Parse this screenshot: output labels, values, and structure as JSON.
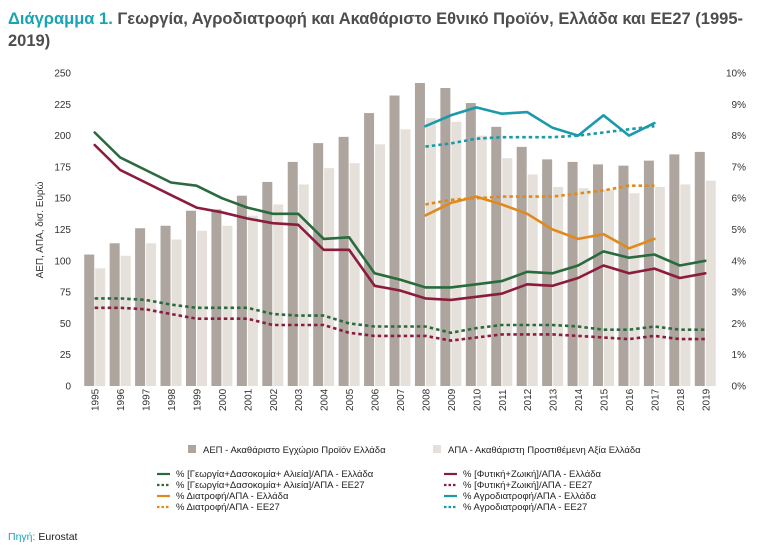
{
  "title": {
    "prefix": "Διάγραμμα 1.",
    "text": "Γεωργία, Αγροδιατροφή και Ακαθάριστο Εθνικό Προϊόν, Ελλάδα και ΕΕ27 (1995-2019)"
  },
  "source": {
    "label": "Πηγή:",
    "value": "Eurostat"
  },
  "colors": {
    "gdp_bar": "#ada59e",
    "gva_bar": "#e5e0da",
    "agri": "#2a6b3e",
    "plant": "#8c1c3b",
    "food": "#e08a1e",
    "agrifood": "#1a9aaa"
  },
  "chart_data": {
    "type": "bar+line",
    "categories": [
      "1995",
      "1996",
      "1997",
      "1998",
      "1999",
      "2000",
      "2001",
      "2002",
      "2003",
      "2004",
      "2005",
      "2006",
      "2007",
      "2008",
      "2009",
      "2010",
      "2011",
      "2012",
      "2013",
      "2014",
      "2015",
      "2016",
      "2017",
      "2018",
      "2019"
    ],
    "ylabel": "ΑΕΠ, ΑΠΑ, δισ. Ευρώ",
    "ylim": [
      0,
      250
    ],
    "y_ticks": [
      "0",
      "25",
      "50",
      "75",
      "100",
      "125",
      "150",
      "175",
      "200",
      "225",
      "250"
    ],
    "y2lim": [
      0,
      10
    ],
    "y2_ticks": [
      "0%",
      "1%",
      "2%",
      "3%",
      "4%",
      "5%",
      "6%",
      "7%",
      "8%",
      "9%",
      "10%"
    ],
    "bars": [
      {
        "name": "ΑΕΠ - Ακαθάριστο Εγχώριο Προϊόν Ελλάδα",
        "axis": "left",
        "values": [
          105,
          114,
          126,
          128,
          140,
          141,
          152,
          163,
          179,
          194,
          199,
          218,
          232,
          242,
          238,
          226,
          207,
          191,
          181,
          179,
          177,
          176,
          180,
          185,
          187
        ]
      },
      {
        "name": "ΑΠΑ - Ακαθάριστη Προστιθέμενη Αξία Ελλάδα",
        "axis": "left",
        "values": [
          94,
          104,
          114,
          117,
          124,
          128,
          136,
          145,
          161,
          174,
          178,
          193,
          205,
          214,
          211,
          200,
          182,
          169,
          159,
          158,
          157,
          154,
          159,
          161,
          164
        ]
      }
    ],
    "series": [
      {
        "name": "% [Γεωργία+Δασοκομία+ Αλιεία]/ΑΠΑ - Ελλάδα",
        "axis": "right",
        "style": "solid",
        "color": "agri",
        "values": [
          8.1,
          7.3,
          6.9,
          6.5,
          6.4,
          6.0,
          5.7,
          5.5,
          5.5,
          4.7,
          4.75,
          3.6,
          3.4,
          3.15,
          3.15,
          3.25,
          3.35,
          3.65,
          3.6,
          3.85,
          4.3,
          4.1,
          4.2,
          3.85,
          4.0
        ]
      },
      {
        "name": "% [Γεωργία+Δασοκομία+ Αλιεία]/ΑΠΑ - ΕΕ27",
        "axis": "right",
        "style": "dotted",
        "color": "agri",
        "values": [
          2.8,
          2.8,
          2.75,
          2.6,
          2.5,
          2.5,
          2.5,
          2.3,
          2.25,
          2.25,
          2.0,
          1.9,
          1.9,
          1.9,
          1.7,
          1.85,
          1.95,
          1.95,
          1.95,
          1.9,
          1.8,
          1.8,
          1.9,
          1.8,
          1.8
        ]
      },
      {
        "name": "% [Φυτική+Ζωική]/ΑΠΑ - Ελλάδα",
        "axis": "right",
        "style": "solid",
        "color": "plant",
        "values": [
          7.7,
          6.9,
          6.5,
          6.1,
          5.7,
          5.55,
          5.35,
          5.2,
          5.15,
          4.35,
          4.35,
          3.2,
          3.05,
          2.8,
          2.75,
          2.85,
          2.95,
          3.25,
          3.2,
          3.45,
          3.85,
          3.6,
          3.75,
          3.45,
          3.6
        ]
      },
      {
        "name": "% [Φυτική+Ζωική]/ΑΠΑ - ΕΕ27",
        "axis": "right",
        "style": "dotted",
        "color": "plant",
        "values": [
          2.5,
          2.5,
          2.45,
          2.3,
          2.15,
          2.15,
          2.15,
          1.95,
          1.95,
          1.95,
          1.7,
          1.6,
          1.6,
          1.6,
          1.45,
          1.55,
          1.65,
          1.65,
          1.65,
          1.6,
          1.55,
          1.5,
          1.6,
          1.5,
          1.5
        ]
      },
      {
        "name": "% Διατροφή/ΑΠΑ - Ελλάδα",
        "axis": "right",
        "style": "solid",
        "color": "food",
        "values": [
          null,
          null,
          null,
          null,
          null,
          null,
          null,
          null,
          null,
          null,
          null,
          null,
          null,
          5.45,
          5.85,
          6.05,
          5.8,
          5.5,
          5.0,
          4.7,
          4.85,
          4.4,
          4.7,
          null,
          null
        ]
      },
      {
        "name": "% Διατροφή/ΑΠΑ - ΕΕ27",
        "axis": "right",
        "style": "dotted",
        "color": "food",
        "values": [
          null,
          null,
          null,
          null,
          null,
          null,
          null,
          null,
          null,
          null,
          null,
          null,
          null,
          5.8,
          5.95,
          6.0,
          6.05,
          6.05,
          6.05,
          6.15,
          6.25,
          6.4,
          6.4,
          null,
          null
        ]
      },
      {
        "name": "% Αγροδιατροφή/ΑΠΑ - Ελλάδα",
        "axis": "right",
        "style": "solid",
        "color": "agrifood",
        "values": [
          null,
          null,
          null,
          null,
          null,
          null,
          null,
          null,
          null,
          null,
          null,
          null,
          null,
          8.3,
          8.65,
          8.9,
          8.7,
          8.75,
          8.25,
          8.0,
          8.65,
          8.0,
          8.4,
          null,
          null
        ]
      },
      {
        "name": "% Αγροδιατροφή/ΑΠΑ - ΕΕ27",
        "axis": "right",
        "style": "dotted",
        "color": "agrifood",
        "values": [
          null,
          null,
          null,
          null,
          null,
          null,
          null,
          null,
          null,
          null,
          null,
          null,
          null,
          7.65,
          7.75,
          7.9,
          7.95,
          7.95,
          7.95,
          8.0,
          8.1,
          8.2,
          8.3,
          null,
          null
        ]
      }
    ],
    "grid": false,
    "legend": "bottom"
  }
}
